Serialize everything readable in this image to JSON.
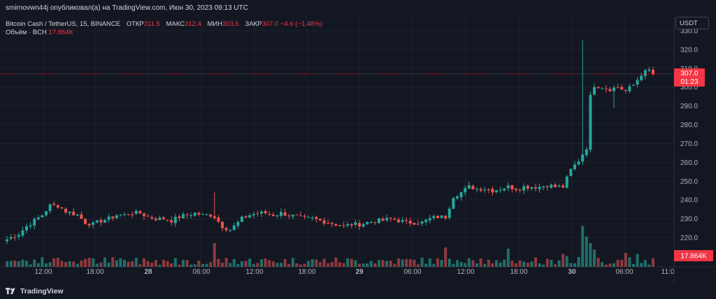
{
  "header": {
    "publish_line": "smirnovwn44j опубликовал(а) на TradingView.com, Июн 30, 2023 09:13 UTC"
  },
  "legend": {
    "symbol": "Bitcoin Cash / TetherUS, 15, BINANCE",
    "open_label": "ОТКР",
    "open_value": "311.5",
    "high_label": "МАКС",
    "high_value": "312.4",
    "low_label": "МИН",
    "low_value": "303.5",
    "close_label": "ЗАКР",
    "close_value": "307.0",
    "change": "−4.6 (−1.48%)",
    "volume_label": "Объём · BCH",
    "volume_value": "17.864K"
  },
  "currency_button": "USDT",
  "footer": {
    "brand": "TradingView"
  },
  "colors": {
    "background": "#131722",
    "up": "#26a69a",
    "down": "#ef5350",
    "vol_up": "#1f6f68",
    "vol_down": "#8e3a3d",
    "price_label": "#f23645",
    "grid": "#1e222d",
    "text": "#d1d4dc",
    "axis_text": "#b2b5be"
  },
  "chart_data": {
    "type": "candlestick",
    "symbol": "BCH/USDT",
    "interval": "15",
    "y_ticks": [
      220,
      230,
      240,
      250,
      260,
      270,
      280,
      290,
      300,
      310,
      320,
      330
    ],
    "ylim": [
      212,
      334
    ],
    "x_ticks": [
      {
        "label": "12:00",
        "bold": false
      },
      {
        "label": "18:00",
        "bold": false
      },
      {
        "label": "28",
        "bold": true
      },
      {
        "label": "06:00",
        "bold": false
      },
      {
        "label": "12:00",
        "bold": false
      },
      {
        "label": "18:00",
        "bold": false
      },
      {
        "label": "29",
        "bold": true
      },
      {
        "label": "06:00",
        "bold": false
      },
      {
        "label": "12:00",
        "bold": false
      },
      {
        "label": "18:00",
        "bold": false
      },
      {
        "label": "30",
        "bold": true
      },
      {
        "label": "06:00",
        "bold": false
      },
      {
        "label": "11:0",
        "bold": false
      }
    ],
    "last_price": "307.0",
    "countdown": "01:23",
    "last_volume": "17.864K",
    "price_path": [
      [
        0,
        219
      ],
      [
        3,
        222
      ],
      [
        5,
        226
      ],
      [
        7,
        229
      ],
      [
        9,
        232
      ],
      [
        11,
        237
      ],
      [
        13,
        237
      ],
      [
        15,
        234
      ],
      [
        18,
        232
      ],
      [
        20,
        228
      ],
      [
        22,
        227
      ],
      [
        24,
        229
      ],
      [
        26,
        230
      ],
      [
        28,
        232
      ],
      [
        30,
        232
      ],
      [
        32,
        233
      ],
      [
        34,
        233
      ],
      [
        36,
        231
      ],
      [
        38,
        230
      ],
      [
        40,
        230
      ],
      [
        42,
        229
      ],
      [
        44,
        231
      ],
      [
        46,
        232
      ],
      [
        48,
        233
      ],
      [
        50,
        232
      ],
      [
        52,
        232
      ],
      [
        53,
        231
      ],
      [
        55,
        226
      ],
      [
        57,
        224
      ],
      [
        60,
        230
      ],
      [
        62,
        232
      ],
      [
        64,
        233
      ],
      [
        66,
        233
      ],
      [
        68,
        232
      ],
      [
        70,
        233
      ],
      [
        72,
        232
      ],
      [
        74,
        231
      ],
      [
        76,
        230
      ],
      [
        78,
        230
      ],
      [
        80,
        229
      ],
      [
        82,
        228
      ],
      [
        84,
        227
      ],
      [
        86,
        226
      ],
      [
        88,
        227
      ],
      [
        90,
        227
      ],
      [
        92,
        228
      ],
      [
        94,
        229
      ],
      [
        96,
        229
      ],
      [
        98,
        230
      ],
      [
        100,
        229
      ],
      [
        102,
        228
      ],
      [
        104,
        228
      ],
      [
        106,
        228
      ],
      [
        108,
        230
      ],
      [
        110,
        231
      ],
      [
        112,
        231
      ],
      [
        114,
        242
      ],
      [
        116,
        244
      ],
      [
        118,
        247
      ],
      [
        120,
        246
      ],
      [
        122,
        246
      ],
      [
        124,
        245
      ],
      [
        126,
        246
      ],
      [
        128,
        247
      ],
      [
        130,
        246
      ],
      [
        132,
        247
      ],
      [
        134,
        247
      ],
      [
        136,
        247
      ],
      [
        138,
        248
      ],
      [
        140,
        247
      ],
      [
        142,
        247
      ],
      [
        144,
        256
      ],
      [
        146,
        261
      ],
      [
        148,
        268
      ],
      [
        149,
        295
      ],
      [
        150,
        301
      ],
      [
        152,
        300
      ],
      [
        154,
        299
      ],
      [
        156,
        300
      ],
      [
        158,
        298
      ],
      [
        160,
        301
      ],
      [
        162,
        307
      ],
      [
        164,
        309
      ],
      [
        165,
        307
      ]
    ],
    "volume_spikes": [
      {
        "bar": 112,
        "level": 0.45
      },
      {
        "bar": 128,
        "level": 0.42
      },
      {
        "bar": 142,
        "level": 0.3
      },
      {
        "bar": 143,
        "level": 0.25
      },
      {
        "bar": 147,
        "level": 0.95
      },
      {
        "bar": 148,
        "level": 0.7
      },
      {
        "bar": 149,
        "level": 0.55
      },
      {
        "bar": 150,
        "level": 0.4
      },
      {
        "bar": 53,
        "level": 0.55
      },
      {
        "bar": 158,
        "level": 0.32
      },
      {
        "bar": 161,
        "level": 0.3
      }
    ]
  }
}
